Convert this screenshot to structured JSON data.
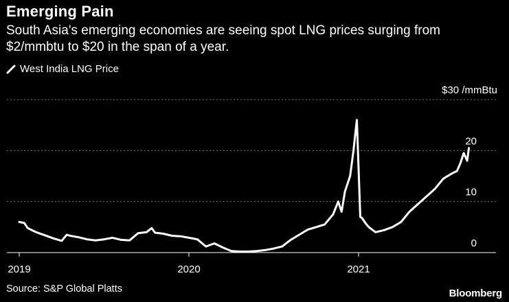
{
  "title": "Emerging Pain",
  "subtitle": "South Asia's emerging economies are seeing spot LNG prices surging from $2/mmbtu to $20 in the span of a year.",
  "source": "Source: S&P Global Platts",
  "brand": "Bloomberg",
  "colors": {
    "background": "#000000",
    "line": "#ffffff",
    "grid": "#7a7a7a"
  },
  "chart_data": {
    "type": "line",
    "title": "Emerging Pain",
    "ylabel": "$30 /mmBtu",
    "ylim": [
      0,
      30
    ],
    "xlim": [
      2019.0,
      2021.8
    ],
    "y_ticks": [
      {
        "value": 30,
        "label": "$30 /mmBtu"
      },
      {
        "value": 20,
        "label": "20"
      },
      {
        "value": 10,
        "label": "10"
      },
      {
        "value": 0,
        "label": "0"
      }
    ],
    "x_ticks": [
      {
        "value": 2019.0,
        "label": "2019"
      },
      {
        "value": 2020.0,
        "label": "2020"
      },
      {
        "value": 2021.0,
        "label": "2021"
      }
    ],
    "legend": "West India LNG Price",
    "series": [
      {
        "name": "West India LNG Price",
        "x": [
          2019.0,
          2019.03,
          2019.05,
          2019.08,
          2019.1,
          2019.15,
          2019.2,
          2019.25,
          2019.28,
          2019.3,
          2019.35,
          2019.4,
          2019.45,
          2019.5,
          2019.55,
          2019.6,
          2019.65,
          2019.7,
          2019.75,
          2019.78,
          2019.8,
          2019.85,
          2019.9,
          2019.95,
          2020.0,
          2020.05,
          2020.1,
          2020.15,
          2020.2,
          2020.25,
          2020.3,
          2020.35,
          2020.4,
          2020.45,
          2020.5,
          2020.55,
          2020.6,
          2020.65,
          2020.7,
          2020.75,
          2020.8,
          2020.85,
          2020.88,
          2020.9,
          2020.92,
          2020.95,
          2020.97,
          2020.99,
          2021.01,
          2021.02,
          2021.04,
          2021.06,
          2021.1,
          2021.15,
          2021.2,
          2021.25,
          2021.3,
          2021.35,
          2021.4,
          2021.45,
          2021.5,
          2021.55,
          2021.58,
          2021.6,
          2021.62,
          2021.64,
          2021.65
        ],
        "values": [
          6.0,
          5.8,
          4.8,
          4.3,
          4.0,
          3.4,
          2.8,
          2.3,
          3.5,
          3.3,
          3.0,
          2.6,
          2.4,
          2.6,
          2.9,
          2.5,
          2.4,
          3.8,
          4.0,
          4.8,
          3.9,
          3.7,
          3.3,
          3.2,
          2.9,
          2.6,
          1.2,
          1.8,
          1.0,
          0.3,
          0.2,
          0.2,
          0.3,
          0.5,
          0.8,
          1.2,
          2.5,
          3.5,
          4.5,
          5.0,
          5.5,
          7.5,
          10.0,
          8.0,
          12.0,
          15.0,
          20.0,
          26.0,
          7.0,
          6.8,
          5.8,
          5.0,
          4.0,
          4.4,
          5.0,
          6.0,
          8.0,
          9.5,
          11.0,
          12.5,
          14.5,
          15.5,
          16.0,
          17.5,
          19.5,
          18.0,
          20.5
        ]
      }
    ]
  }
}
